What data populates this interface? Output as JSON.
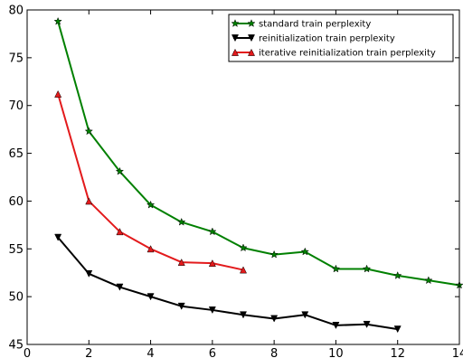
{
  "chart_data": {
    "type": "line",
    "title": "",
    "xlabel": "",
    "ylabel": "",
    "xlim": [
      0,
      14
    ],
    "ylim": [
      45,
      80
    ],
    "x_ticks": [
      0,
      2,
      4,
      6,
      8,
      10,
      12,
      14
    ],
    "y_ticks": [
      45,
      50,
      55,
      60,
      65,
      70,
      75,
      80
    ],
    "grid": false,
    "legend_position": "top-right",
    "series": [
      {
        "name": "standard train perplexity",
        "color": "#008000",
        "marker": "star",
        "x": [
          1,
          2,
          3,
          4,
          5,
          6,
          7,
          8,
          9,
          10,
          11,
          12,
          13,
          14
        ],
        "y": [
          78.8,
          67.3,
          63.1,
          59.6,
          57.8,
          56.8,
          55.1,
          54.4,
          54.7,
          52.9,
          52.9,
          52.2,
          51.7,
          51.2
        ]
      },
      {
        "name": "reinitialization train perplexity",
        "color": "#000000",
        "marker": "triangle-down",
        "x": [
          1,
          2,
          3,
          4,
          5,
          6,
          7,
          8,
          9,
          10,
          11,
          12
        ],
        "y": [
          56.2,
          52.4,
          51.0,
          50.0,
          49.0,
          48.6,
          48.1,
          47.7,
          48.1,
          47.0,
          47.1,
          46.6
        ]
      },
      {
        "name": "iterative reinitialization train perplexity",
        "color": "#e31a1c",
        "marker": "triangle-up",
        "x": [
          1,
          2,
          3,
          4,
          5,
          6,
          7
        ],
        "y": [
          71.2,
          60.0,
          56.8,
          55.0,
          53.6,
          53.5,
          52.8
        ]
      }
    ]
  }
}
